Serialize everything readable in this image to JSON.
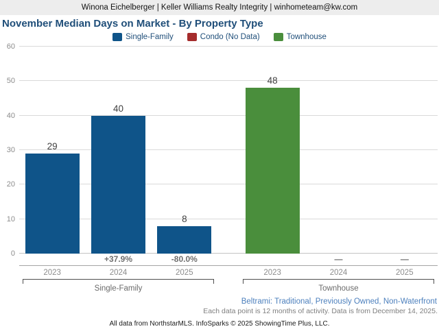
{
  "header": {
    "contact_line": "Winona Eichelberger | Keller Williams Realty Integrity | winhometeam@kw.com"
  },
  "title": "November Median Days on Market - By Property Type",
  "legend": [
    {
      "label": "Single-Family",
      "color": "#0f5489"
    },
    {
      "label": "Condo (No Data)",
      "color": "#a52c2c"
    },
    {
      "label": "Townhouse",
      "color": "#4a8e3c"
    }
  ],
  "chart_data": {
    "type": "bar",
    "title": "November Median Days on Market - By Property Type",
    "xlabel": "",
    "ylabel": "",
    "ylim": [
      0,
      60
    ],
    "yticks": [
      0,
      10,
      20,
      30,
      40,
      50,
      60
    ],
    "grid": "horizontal",
    "legend_position": "top-center",
    "legend_entries": [
      "Single-Family",
      "Condo (No Data)",
      "Townhouse"
    ],
    "groups": [
      {
        "name": "Single-Family",
        "color": "#0f5489",
        "bars": [
          {
            "year": "2023",
            "value": 29,
            "change": ""
          },
          {
            "year": "2024",
            "value": 40,
            "change": "+37.9%"
          },
          {
            "year": "2025",
            "value": 8,
            "change": "-80.0%"
          }
        ]
      },
      {
        "name": "Townhouse",
        "color": "#4a8e3c",
        "bars": [
          {
            "year": "2023",
            "value": 48,
            "change": ""
          },
          {
            "year": "2024",
            "value": null,
            "change": "—"
          },
          {
            "year": "2025",
            "value": null,
            "change": "—"
          }
        ]
      }
    ]
  },
  "footer": {
    "filter_line": "Beltrami: Traditional, Previously Owned, Non-Waterfront",
    "data_note": "Each data point is 12 months of activity. Data is from December 14, 2025.",
    "attribution": "All data from NorthstarMLS. InfoSparks © 2025 ShowingTime Plus, LLC."
  }
}
